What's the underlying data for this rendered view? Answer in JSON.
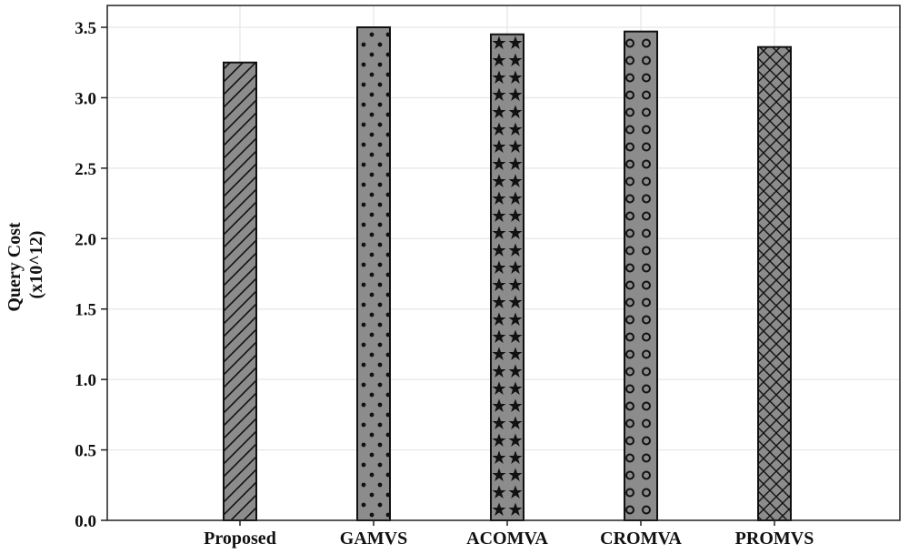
{
  "chart_data": {
    "type": "bar",
    "categories": [
      "Proposed",
      "GAMVS",
      "ACOMVA",
      "CROMVA",
      "PROMVS"
    ],
    "values": [
      3.25,
      3.5,
      3.45,
      3.47,
      3.36
    ],
    "patterns": [
      "diagonal",
      "dots",
      "stars",
      "circles",
      "crosshatch"
    ],
    "title": "",
    "xlabel": "",
    "ylabel": "Query Cost (x10^12)",
    "ylabel_lines": [
      "Query Cost",
      "(x10^12)"
    ],
    "ylim": [
      0,
      3.5
    ],
    "yticks": [
      "0.0",
      "0.5",
      "1.0",
      "1.5",
      "2.0",
      "2.5",
      "3.0",
      "3.5"
    ],
    "grid": true,
    "bar_color": "#8c8c8c",
    "pattern_color": "#111111"
  }
}
